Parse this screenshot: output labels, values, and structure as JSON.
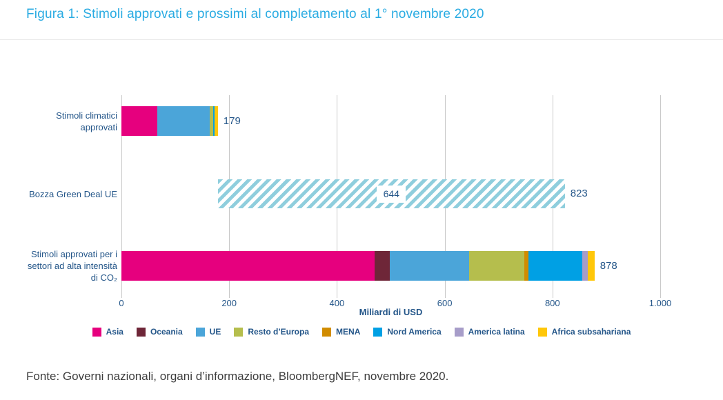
{
  "title": "Figura 1: Stimoli approvati e prossimi al completamento al 1° novembre 2020",
  "footer": "Fonte: Governi nazionali, organi d’informazione, BloombergNEF, novembre 2020.",
  "colors": {
    "title_accent": "#29ABE2",
    "text_navy": "#245689",
    "gridline": "#c9c9c9",
    "hatch_stripe": "#8FCEDD",
    "footer_text": "#3d3d3d"
  },
  "chart_data": {
    "type": "bar",
    "orientation": "horizontal",
    "title": "Figura 1: Stimoli approvati e prossimi al completamento al 1° novembre 2020",
    "xlabel": "Miliardi di USD",
    "xlim": [
      0,
      1000
    ],
    "grid": true,
    "legend_position": "bottom",
    "xticks": [
      {
        "value": 0,
        "label": "0"
      },
      {
        "value": 200,
        "label": "200"
      },
      {
        "value": 400,
        "label": "400"
      },
      {
        "value": 600,
        "label": "600"
      },
      {
        "value": 800,
        "label": "800"
      },
      {
        "value": 1000,
        "label": "1.000"
      }
    ],
    "legend": [
      {
        "label": "Asia",
        "color": "#E6007E"
      },
      {
        "label": "Oceania",
        "color": "#6E2638"
      },
      {
        "label": "UE",
        "color": "#4BA5D9"
      },
      {
        "label": "Resto d’Europa",
        "color": "#B5BE4D"
      },
      {
        "label": "MENA",
        "color": "#D18C00"
      },
      {
        "label": "Nord America",
        "color": "#00A0E4"
      },
      {
        "label": "America latina",
        "color": "#A79DC9"
      },
      {
        "label": "Africa subsahariana",
        "color": "#FFC709"
      }
    ],
    "bars": [
      {
        "name": "stimoli-climatici-approvati",
        "label_lines": [
          "Stimoli climatici",
          "approvati"
        ],
        "total": 179,
        "total_label": "179",
        "kind": "stacked",
        "segments": [
          {
            "region": "Asia",
            "value": 67
          },
          {
            "region": "UE",
            "value": 97
          },
          {
            "region": "Resto d’Europa",
            "value": 6
          },
          {
            "region": "Nord America",
            "value": 3
          },
          {
            "region": "Africa subsahariana",
            "value": 6
          }
        ]
      },
      {
        "name": "bozza-green-deal-ue",
        "label_lines": [
          "Bozza Green Deal UE"
        ],
        "total": 823,
        "total_label": "823",
        "kind": "hatched-range",
        "start": 179,
        "end": 823,
        "segment_value": 644,
        "inner_label": "644"
      },
      {
        "name": "stimoli-settori-alta-intensita-co2",
        "label_lines": [
          "Stimoli approvati per i",
          "settori ad alta intensità",
          "di CO₂"
        ],
        "total": 878,
        "total_label": "878",
        "kind": "stacked",
        "segments": [
          {
            "region": "Asia",
            "value": 470
          },
          {
            "region": "Oceania",
            "value": 28
          },
          {
            "region": "UE",
            "value": 147
          },
          {
            "region": "Resto d’Europa",
            "value": 103
          },
          {
            "region": "MENA",
            "value": 8
          },
          {
            "region": "Nord America",
            "value": 100
          },
          {
            "region": "America latina",
            "value": 9
          },
          {
            "region": "Africa subsahariana",
            "value": 13
          }
        ]
      }
    ]
  }
}
